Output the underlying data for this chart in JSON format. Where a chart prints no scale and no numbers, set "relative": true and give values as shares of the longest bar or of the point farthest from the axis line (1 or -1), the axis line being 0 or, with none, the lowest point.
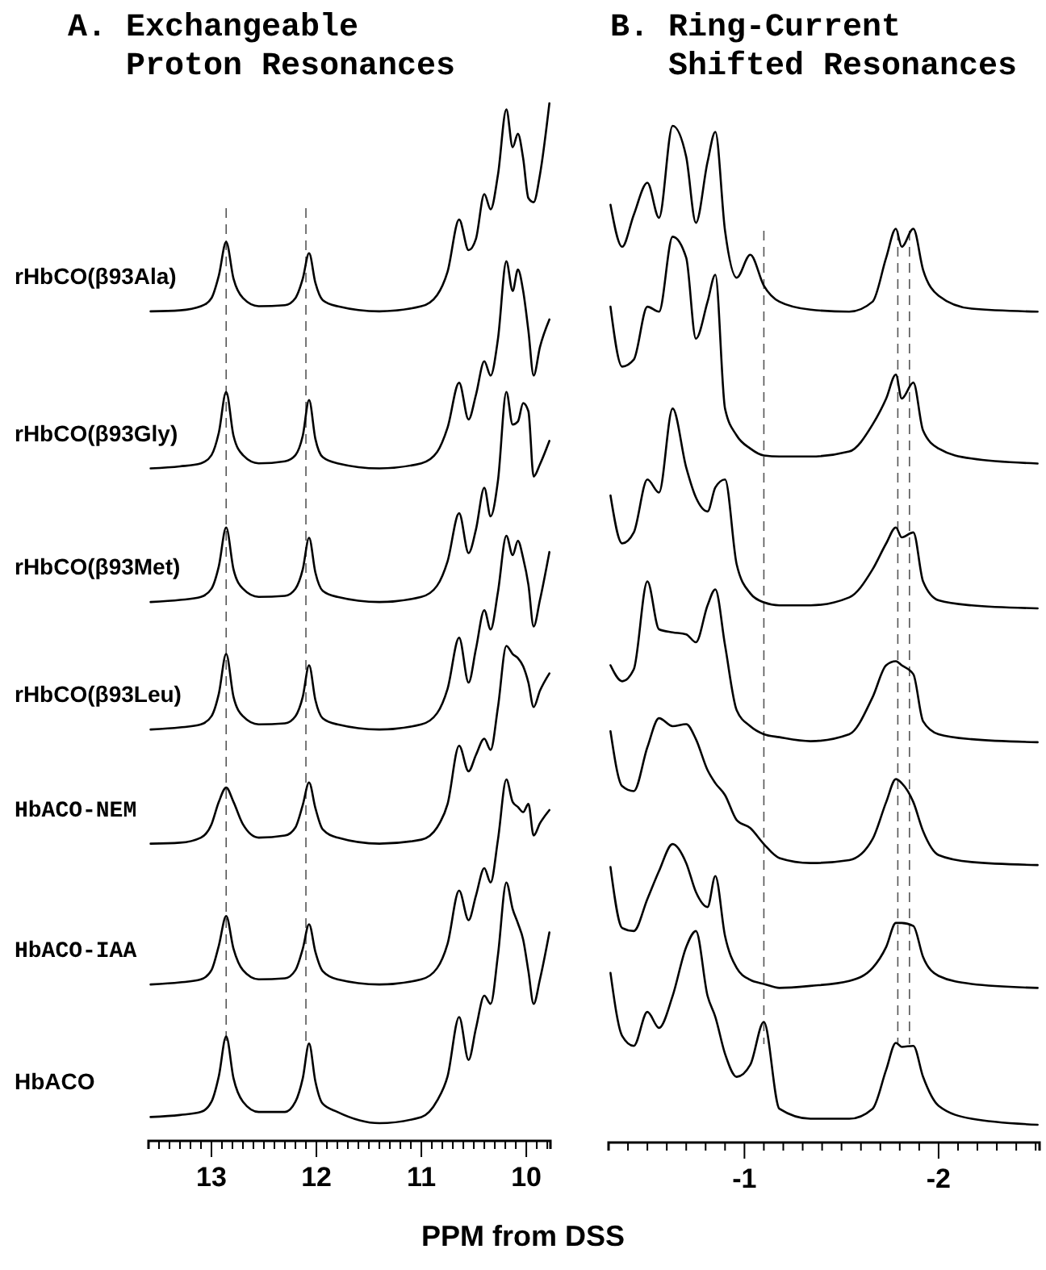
{
  "chart_data": [
    {
      "type": "line",
      "title": "A. Exchangeable Proton Resonances",
      "xlabel": "PPM from DSS",
      "relative": true,
      "line_style": "solid",
      "x": [
        13.58,
        13.3,
        13.1,
        13.0,
        12.93,
        12.86,
        12.79,
        12.7,
        12.55,
        12.3,
        12.2,
        12.13,
        12.07,
        12.01,
        11.94,
        11.8,
        11.4,
        11.0,
        10.85,
        10.75,
        10.64,
        10.55,
        10.48,
        10.4,
        10.34,
        10.27,
        10.19,
        10.13,
        10.08,
        10.03,
        9.98,
        9.93,
        9.87,
        9.78
      ],
      "xlim": [
        13.6,
        9.77
      ],
      "xticks": [
        {
          "value": 13.6,
          "label": null
        },
        {
          "value": 13.5,
          "label": null
        },
        {
          "value": 13.4,
          "label": null
        },
        {
          "value": 13.3,
          "label": null
        },
        {
          "value": 13.2,
          "label": null
        },
        {
          "value": 13.1,
          "label": null
        },
        13,
        {
          "value": 12.9,
          "label": null
        },
        {
          "value": 12.8,
          "label": null
        },
        {
          "value": 12.7,
          "label": null
        },
        {
          "value": 12.6,
          "label": null
        },
        {
          "value": 12.5,
          "label": null
        },
        {
          "value": 12.4,
          "label": null
        },
        {
          "value": 12.3,
          "label": null
        },
        {
          "value": 12.2,
          "label": null
        },
        {
          "value": 12.1,
          "label": null
        },
        12,
        {
          "value": 11.9,
          "label": null
        },
        {
          "value": 11.8,
          "label": null
        },
        {
          "value": 11.7,
          "label": null
        },
        {
          "value": 11.6,
          "label": null
        },
        {
          "value": 11.5,
          "label": null
        },
        {
          "value": 11.4,
          "label": null
        },
        {
          "value": 11.3,
          "label": null
        },
        {
          "value": 11.2,
          "label": null
        },
        {
          "value": 11.1,
          "label": null
        },
        11,
        {
          "value": 10.9,
          "label": null
        },
        {
          "value": 10.8,
          "label": null
        },
        {
          "value": 10.7,
          "label": null
        },
        {
          "value": 10.6,
          "label": null
        },
        {
          "value": 10.5,
          "label": null
        },
        {
          "value": 10.4,
          "label": null
        },
        {
          "value": 10.3,
          "label": null
        },
        {
          "value": 10.2,
          "label": null
        },
        {
          "value": 10.1,
          "label": null
        },
        10,
        {
          "value": 9.9,
          "label": null
        },
        {
          "value": 9.8,
          "label": null
        }
      ],
      "ref_lines": [
        {
          "axis": "x",
          "value": 12.86,
          "line_style": "dashed"
        },
        {
          "axis": "x",
          "value": 12.1,
          "line_style": "dashed"
        }
      ],
      "series": [
        {
          "name": "rHbCO(β93Ala)",
          "color": "#000000",
          "values": [
            0.796,
            0.797,
            0.801,
            0.809,
            0.831,
            0.864,
            0.828,
            0.809,
            0.801,
            0.802,
            0.809,
            0.828,
            0.853,
            0.824,
            0.807,
            0.801,
            0.796,
            0.801,
            0.812,
            0.835,
            0.886,
            0.856,
            0.867,
            0.911,
            0.896,
            0.93,
            0.994,
            0.957,
            0.97,
            0.946,
            0.907,
            0.903,
            0.93,
            1
          ]
        },
        {
          "name": "rHbCO(β93Gly)",
          "color": "#000000",
          "values": [
            0.642,
            0.644,
            0.647,
            0.655,
            0.677,
            0.717,
            0.674,
            0.655,
            0.647,
            0.649,
            0.655,
            0.674,
            0.709,
            0.671,
            0.653,
            0.647,
            0.642,
            0.647,
            0.658,
            0.682,
            0.726,
            0.69,
            0.714,
            0.747,
            0.733,
            0.769,
            0.845,
            0.816,
            0.837,
            0.816,
            0.777,
            0.733,
            0.761,
            0.788
          ]
        },
        {
          "name": "rHbCO(β93Met)",
          "color": "#000000",
          "values": [
            0.511,
            0.513,
            0.516,
            0.524,
            0.546,
            0.584,
            0.543,
            0.524,
            0.516,
            0.517,
            0.524,
            0.543,
            0.574,
            0.54,
            0.522,
            0.516,
            0.511,
            0.516,
            0.527,
            0.551,
            0.598,
            0.559,
            0.582,
            0.623,
            0.595,
            0.63,
            0.717,
            0.685,
            0.688,
            0.706,
            0.698,
            0.634,
            0.646,
            0.669
          ]
        },
        {
          "name": "rHbCO(β93Leu)",
          "color": "#000000",
          "values": [
            0.386,
            0.388,
            0.391,
            0.399,
            0.421,
            0.46,
            0.418,
            0.399,
            0.391,
            0.392,
            0.399,
            0.418,
            0.449,
            0.415,
            0.397,
            0.391,
            0.386,
            0.391,
            0.402,
            0.426,
            0.476,
            0.432,
            0.465,
            0.503,
            0.484,
            0.521,
            0.576,
            0.557,
            0.571,
            0.554,
            0.528,
            0.487,
            0.513,
            0.56
          ]
        },
        {
          "name": "HbACO-NEM",
          "color": "#000000",
          "values": [
            0.274,
            0.275,
            0.28,
            0.293,
            0.315,
            0.329,
            0.315,
            0.293,
            0.28,
            0.282,
            0.29,
            0.312,
            0.334,
            0.309,
            0.288,
            0.28,
            0.274,
            0.278,
            0.29,
            0.313,
            0.37,
            0.345,
            0.361,
            0.377,
            0.366,
            0.408,
            0.468,
            0.46,
            0.456,
            0.448,
            0.432,
            0.408,
            0.424,
            0.441
          ]
        },
        {
          "name": "HbACO-IAA",
          "color": "#000000",
          "values": [
            0.136,
            0.138,
            0.141,
            0.15,
            0.174,
            0.203,
            0.171,
            0.15,
            0.141,
            0.142,
            0.15,
            0.171,
            0.195,
            0.168,
            0.149,
            0.141,
            0.136,
            0.141,
            0.152,
            0.176,
            0.228,
            0.199,
            0.223,
            0.25,
            0.236,
            0.278,
            0.337,
            0.315,
            0.31,
            0.305,
            0.313,
            0.282,
            0.294,
            0.307
          ]
        },
        {
          "name": "HbACO",
          "color": "#000000",
          "values": [
            0.006,
            0.008,
            0.011,
            0.021,
            0.046,
            0.085,
            0.044,
            0.021,
            0.011,
            0.011,
            0.021,
            0.044,
            0.078,
            0.041,
            0.019,
            0.011,
            0,
            0.006,
            0.022,
            0.046,
            0.104,
            0.062,
            0.093,
            0.125,
            0.117,
            0.165,
            0.236,
            0.21,
            0.196,
            0.18,
            0.149,
            0.117,
            0.141,
            0.187
          ]
        }
      ]
    },
    {
      "type": "line",
      "title": "B. Ring-Current Shifted Resonances",
      "relative": true,
      "line_style": "solid",
      "x": [
        -0.31,
        -0.37,
        -0.43,
        -0.5,
        -0.56,
        -0.63,
        -0.7,
        -0.75,
        -0.81,
        -0.85,
        -0.9,
        -0.96,
        -1.03,
        -1.1,
        -1.18,
        -1.34,
        -1.54,
        -1.66,
        -1.73,
        -1.78,
        -1.81,
        -1.87,
        -1.92,
        -2.0,
        -2.17,
        -2.51
      ],
      "xlim": [
        -0.3,
        -2.52
      ],
      "xticks": [
        {
          "value": -0.3,
          "label": null
        },
        {
          "value": -0.4,
          "label": null
        },
        {
          "value": -0.5,
          "label": null
        },
        {
          "value": -0.6,
          "label": null
        },
        {
          "value": -0.7,
          "label": null
        },
        {
          "value": -0.8,
          "label": null
        },
        {
          "value": -0.9,
          "label": null
        },
        -1,
        {
          "value": -1.1,
          "label": null
        },
        {
          "value": -1.2,
          "label": null
        },
        {
          "value": -1.3,
          "label": null
        },
        {
          "value": -1.4,
          "label": null
        },
        {
          "value": -1.5,
          "label": null
        },
        {
          "value": -1.6,
          "label": null
        },
        {
          "value": -1.7,
          "label": null
        },
        {
          "value": -1.8,
          "label": null
        },
        {
          "value": -1.9,
          "label": null
        },
        -2,
        {
          "value": -2.1,
          "label": null
        },
        {
          "value": -2.2,
          "label": null
        },
        {
          "value": -2.3,
          "label": null
        },
        {
          "value": -2.4,
          "label": null
        },
        {
          "value": -2.5,
          "label": null
        }
      ],
      "ref_lines": [
        {
          "axis": "x",
          "value": -1.1,
          "line_style": "dashed"
        },
        {
          "axis": "x",
          "value": -1.79,
          "line_style": "dashed"
        },
        {
          "axis": "x",
          "value": -1.85,
          "line_style": "dashed"
        }
      ],
      "series": [
        {
          "color": "#000000",
          "values": [
            0.921,
            0.879,
            0.911,
            0.943,
            0.908,
            1,
            0.969,
            0.903,
            0.964,
            0.994,
            0.895,
            0.848,
            0.871,
            0.84,
            0.824,
            0.816,
            0.814,
            0.824,
            0.868,
            0.897,
            0.879,
            0.897,
            0.856,
            0.83,
            0.817,
            0.814
          ]
        },
        {
          "color": "#000000",
          "values": [
            0.819,
            0.759,
            0.766,
            0.819,
            0.814,
            0.889,
            0.868,
            0.787,
            0.824,
            0.851,
            0.717,
            0.69,
            0.677,
            0.67,
            0.669,
            0.669,
            0.674,
            0.701,
            0.727,
            0.751,
            0.727,
            0.743,
            0.695,
            0.677,
            0.667,
            0.662
          ]
        },
        {
          "color": "#000000",
          "values": [
            0.63,
            0.582,
            0.593,
            0.646,
            0.633,
            0.717,
            0.658,
            0.628,
            0.614,
            0.638,
            0.646,
            0.561,
            0.532,
            0.523,
            0.52,
            0.52,
            0.528,
            0.556,
            0.582,
            0.598,
            0.588,
            0.593,
            0.544,
            0.525,
            0.52,
            0.517
          ]
        },
        {
          "color": "#000000",
          "values": [
            0.46,
            0.444,
            0.456,
            0.544,
            0.496,
            0.493,
            0.491,
            0.483,
            0.52,
            0.536,
            0.48,
            0.415,
            0.399,
            0.391,
            0.388,
            0.384,
            0.391,
            0.428,
            0.46,
            0.464,
            0.46,
            0.451,
            0.404,
            0.391,
            0.386,
            0.383
          ]
        },
        {
          "color": "#000000",
          "values": [
            0.394,
            0.339,
            0.334,
            0.378,
            0.407,
            0.399,
            0.401,
            0.386,
            0.355,
            0.342,
            0.33,
            0.305,
            0.297,
            0.281,
            0.267,
            0.262,
            0.265,
            0.286,
            0.323,
            0.346,
            0.342,
            0.323,
            0.294,
            0.27,
            0.263,
            0.26
          ]
        },
        {
          "color": "#000000",
          "values": [
            0.258,
            0.197,
            0.194,
            0.226,
            0.254,
            0.281,
            0.262,
            0.233,
            0.218,
            0.249,
            0.189,
            0.157,
            0.145,
            0.141,
            0.137,
            0.139,
            0.144,
            0.157,
            0.178,
            0.202,
            0.202,
            0.199,
            0.168,
            0.149,
            0.141,
            0.137
          ]
        },
        {
          "color": "#000000",
          "values": [
            0.152,
            0.089,
            0.079,
            0.113,
            0.097,
            0.129,
            0.178,
            0.194,
            0.129,
            0.108,
            0.071,
            0.048,
            0.06,
            0.103,
            0.016,
            0.006,
            0.006,
            0.016,
            0.055,
            0.082,
            0.078,
            0.079,
            0.048,
            0.019,
            0.006,
            0
          ]
        }
      ]
    }
  ]
}
